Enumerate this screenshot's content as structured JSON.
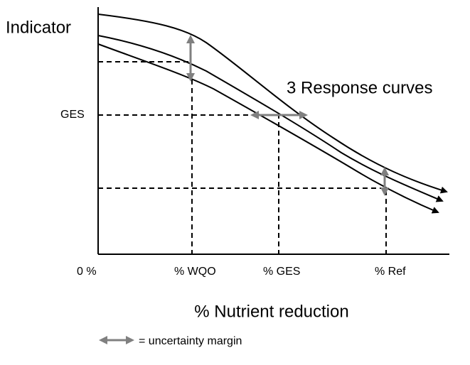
{
  "y_axis_label": "Indicator",
  "curves_label": "3 Response curves",
  "y_level_label": "GES",
  "x_labels": [
    "0 %",
    "% WQO",
    "% GES",
    "% Ref"
  ],
  "x_axis_label": "% Nutrient reduction",
  "legend": "= uncertainty margin"
}
